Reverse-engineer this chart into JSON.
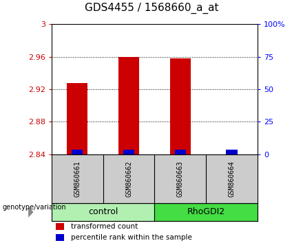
{
  "title": "GDS4455 / 1568660_a_at",
  "samples": [
    "GSM860661",
    "GSM860662",
    "GSM860663",
    "GSM860664"
  ],
  "groups": [
    "control",
    "control",
    "RhoGDI2",
    "RhoGDI2"
  ],
  "red_values": [
    2.928,
    2.96,
    2.958,
    2.84
  ],
  "blue_values": [
    2.845,
    2.844,
    2.845,
    2.843
  ],
  "ymin": 2.84,
  "ymax": 3.0,
  "yticks_left": [
    2.84,
    2.88,
    2.92,
    2.96,
    3.0
  ],
  "yticks_right_vals": [
    0,
    25,
    50,
    75,
    100
  ],
  "yticks_right_labels": [
    "0",
    "25",
    "50",
    "75",
    "100%"
  ],
  "bar_width": 0.4,
  "red_color": "#cc0000",
  "blue_color": "#0000cc",
  "bg_sample_row": "#cccccc",
  "bg_control": "#b2f0b2",
  "bg_rhodgi2": "#44dd44",
  "legend_red": "transformed count",
  "legend_blue": "percentile rank within the sample",
  "group_label": "genotype/variation",
  "title_fontsize": 11,
  "tick_fontsize": 8,
  "sample_fontsize": 7,
  "group_fontsize": 9,
  "legend_fontsize": 7.5
}
